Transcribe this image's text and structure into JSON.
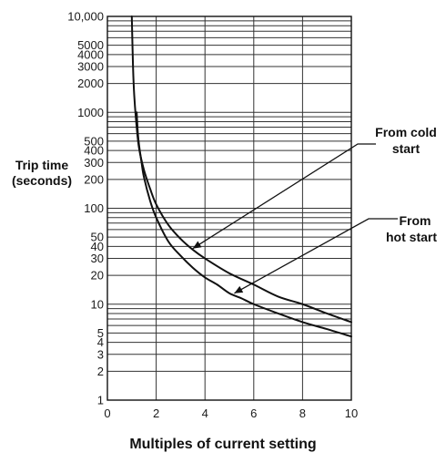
{
  "chart_data": {
    "type": "line",
    "title": "",
    "xlabel": "Multiples of current setting",
    "ylabel_lines": [
      "Trip time",
      "(seconds)"
    ],
    "y_scale": "log",
    "xlim": [
      0,
      10
    ],
    "ylim": [
      1,
      10000
    ],
    "grid": true,
    "x_ticks": [
      0,
      2,
      4,
      6,
      8,
      10
    ],
    "y_ticks": [
      {
        "v": 1,
        "label": "1"
      },
      {
        "v": 2,
        "label": "2"
      },
      {
        "v": 3,
        "label": "3"
      },
      {
        "v": 4,
        "label": "4"
      },
      {
        "v": 5,
        "label": "5"
      },
      {
        "v": 10,
        "label": "10"
      },
      {
        "v": 20,
        "label": "20"
      },
      {
        "v": 30,
        "label": "30"
      },
      {
        "v": 40,
        "label": "40"
      },
      {
        "v": 50,
        "label": "50"
      },
      {
        "v": 100,
        "label": "100"
      },
      {
        "v": 200,
        "label": "200"
      },
      {
        "v": 300,
        "label": "300"
      },
      {
        "v": 400,
        "label": "400"
      },
      {
        "v": 500,
        "label": "500"
      },
      {
        "v": 1000,
        "label": "1000"
      },
      {
        "v": 2000,
        "label": "2000"
      },
      {
        "v": 3000,
        "label": "3000"
      },
      {
        "v": 4000,
        "label": "4000"
      },
      {
        "v": 5000,
        "label": "5000"
      },
      {
        "v": 10000,
        "label": "10,000"
      }
    ],
    "series": [
      {
        "name": "From cold start",
        "x": [
          1.0,
          1.05,
          1.1,
          1.2,
          1.3,
          1.5,
          1.75,
          2.0,
          2.5,
          3.0,
          3.5,
          4.0,
          5.0,
          6.0,
          7.0,
          8.0,
          9.0,
          10.0
        ],
        "y": [
          10000,
          3000,
          1500,
          700,
          420,
          250,
          160,
          110,
          67,
          48,
          37,
          30,
          21,
          16,
          12,
          10,
          8,
          6.5
        ]
      },
      {
        "name": "From hot start",
        "x": [
          1.2,
          1.25,
          1.3,
          1.4,
          1.5,
          1.75,
          2.0,
          2.5,
          3.0,
          3.5,
          4.0,
          4.5,
          5.0,
          5.5,
          6.0,
          7.0,
          8.0,
          9.0,
          10.0
        ],
        "y": [
          1000,
          600,
          450,
          300,
          210,
          120,
          80,
          45,
          32,
          24,
          19,
          16,
          13,
          11.5,
          10,
          8,
          6.5,
          5.5,
          4.6
        ]
      }
    ],
    "annotations": [
      {
        "lines": [
          "From cold",
          "start"
        ],
        "target_x": 3.5,
        "target_y": 38
      },
      {
        "lines": [
          "From",
          "hot start"
        ],
        "target_x": 5.2,
        "target_y": 13
      }
    ]
  }
}
